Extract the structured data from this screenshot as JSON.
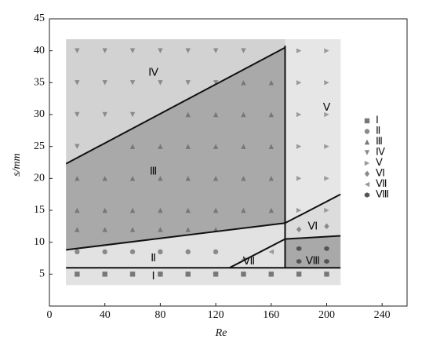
{
  "chart_data": {
    "type": "scatter",
    "x_label": "Re",
    "y_label": "s/mm",
    "xlim": [
      0,
      258
    ],
    "ylim": [
      0,
      45
    ],
    "xticks": [
      0,
      40,
      80,
      120,
      160,
      200,
      240
    ],
    "yticks": [
      5,
      10,
      15,
      20,
      25,
      30,
      35,
      40,
      45
    ],
    "regions": [
      {
        "x": [
          12,
          210,
          210,
          12
        ],
        "y": [
          3.3,
          3.3,
          41.8,
          41.8
        ],
        "color": "#d2d2d2"
      },
      {
        "x": [
          12,
          170,
          170,
          12
        ],
        "y": [
          3.3,
          3.3,
          13,
          8.8
        ],
        "color": "#e2e2e2"
      },
      {
        "x": [
          12,
          170,
          170,
          12
        ],
        "y": [
          8.8,
          13,
          40.5,
          22.3
        ],
        "color": "#a9a9a9"
      },
      {
        "x": [
          170,
          210,
          210,
          170
        ],
        "y": [
          13,
          17.5,
          41.8,
          41.8
        ],
        "color": "#e6e6e6"
      },
      {
        "x": [
          170,
          210,
          210,
          170
        ],
        "y": [
          10.5,
          11,
          17.5,
          13
        ],
        "color": "#dcdcdc"
      },
      {
        "x": [
          170,
          210,
          210,
          170
        ],
        "y": [
          6,
          6,
          11,
          10.5
        ],
        "color": "#a9a9a9"
      },
      {
        "x": [
          170,
          210,
          210,
          170
        ],
        "y": [
          3.3,
          3.3,
          6,
          6
        ],
        "color": "#e2e2e2"
      }
    ],
    "boundaries": [
      {
        "x": [
          12,
          210
        ],
        "y": [
          6,
          6
        ]
      },
      {
        "x": [
          12,
          170
        ],
        "y": [
          8.8,
          13
        ]
      },
      {
        "x": [
          12,
          170
        ],
        "y": [
          22.3,
          40.5
        ]
      },
      {
        "x": [
          170,
          170
        ],
        "y": [
          6,
          40.8
        ]
      },
      {
        "x": [
          130,
          170,
          210
        ],
        "y": [
          6,
          10.5,
          11
        ]
      },
      {
        "x": [
          170,
          210
        ],
        "y": [
          13,
          17.5
        ]
      }
    ],
    "series": [
      {
        "name": "Ⅰ",
        "marker": "square",
        "color": "#777777",
        "x": [
          20,
          40,
          60,
          80,
          100,
          120,
          140,
          160,
          180,
          200
        ],
        "y": [
          5,
          5,
          5,
          5,
          5,
          5,
          5,
          5,
          5,
          5
        ]
      },
      {
        "name": "Ⅱ",
        "marker": "circle",
        "color": "#8a8a8a",
        "x": [
          20,
          40,
          60,
          80,
          100,
          120
        ],
        "y": [
          8.5,
          8.5,
          8.5,
          8.5,
          8.5,
          8.5
        ]
      },
      {
        "name": "Ⅲ",
        "marker": "triangle-up",
        "color": "#777777",
        "x": [
          20,
          40,
          60,
          80,
          100,
          120,
          20,
          40,
          60,
          80,
          100,
          120,
          140,
          160,
          20,
          40,
          60,
          80,
          100,
          120,
          140,
          160,
          60,
          80,
          100,
          120,
          140,
          160,
          100,
          120,
          140,
          160,
          140,
          160
        ],
        "y": [
          12,
          12,
          12,
          12,
          12,
          12,
          15,
          15,
          15,
          15,
          15,
          15,
          15,
          15,
          20,
          20,
          20,
          20,
          20,
          20,
          20,
          20,
          25,
          25,
          25,
          25,
          25,
          25,
          30,
          30,
          30,
          30,
          35,
          35
        ]
      },
      {
        "name": "Ⅳ",
        "marker": "triangle-down",
        "color": "#8a8a8a",
        "x": [
          20,
          40,
          60,
          80,
          100,
          120,
          140,
          20,
          40,
          60,
          80,
          100,
          120,
          20,
          40,
          60,
          20
        ],
        "y": [
          40,
          40,
          40,
          40,
          40,
          40,
          40,
          35,
          35,
          35,
          35,
          35,
          35,
          30,
          30,
          30,
          25
        ]
      },
      {
        "name": "Ⅴ",
        "marker": "triangle-right",
        "color": "#9a9a9a",
        "x": [
          180,
          200,
          180,
          200,
          180,
          200,
          180,
          200,
          180,
          200,
          180,
          200
        ],
        "y": [
          40,
          40,
          35,
          35,
          30,
          30,
          25,
          25,
          20,
          20,
          15,
          15
        ]
      },
      {
        "name": "Ⅵ",
        "marker": "diamond",
        "color": "#8a8a8a",
        "x": [
          180,
          200
        ],
        "y": [
          12,
          12.5
        ]
      },
      {
        "name": "Ⅶ",
        "marker": "triangle-left",
        "color": "#9a9a9a",
        "x": [
          140,
          160
        ],
        "y": [
          7.3,
          8.5
        ]
      },
      {
        "name": "Ⅷ",
        "marker": "hexagon",
        "color": "#555555",
        "x": [
          180,
          200,
          180,
          200
        ],
        "y": [
          9,
          9,
          7,
          7
        ]
      }
    ]
  }
}
